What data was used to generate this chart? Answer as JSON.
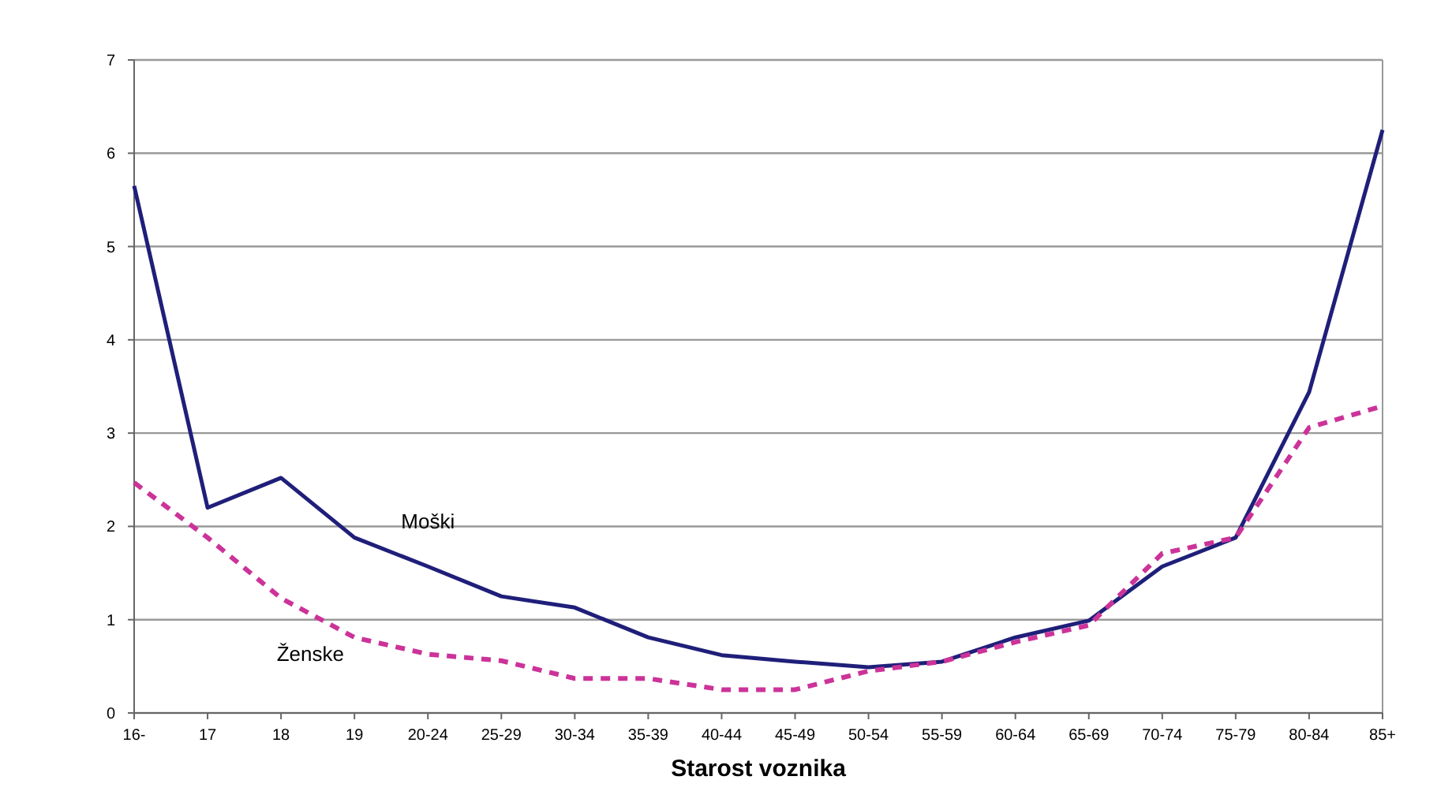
{
  "chart_data": {
    "type": "line",
    "xlabel": "Starost voznika",
    "categories": [
      "16-",
      "17",
      "18",
      "19",
      "20-24",
      "25-29",
      "30-34",
      "35-39",
      "40-44",
      "45-49",
      "50-54",
      "55-59",
      "60-64",
      "65-69",
      "70-74",
      "75-79",
      "80-84",
      "85+"
    ],
    "series": [
      {
        "name": "Moški",
        "color": "#1f1f7a",
        "line_style": "solid",
        "values": [
          5.65,
          2.2,
          2.52,
          1.88,
          1.57,
          1.25,
          1.13,
          0.81,
          0.62,
          0.55,
          0.49,
          0.55,
          0.81,
          0.99,
          1.57,
          1.88,
          3.44,
          6.25
        ]
      },
      {
        "name": "Ženske",
        "color": "#cc3399",
        "line_style": "dashed",
        "values": [
          2.47,
          1.88,
          1.23,
          0.81,
          0.63,
          0.56,
          0.37,
          0.37,
          0.25,
          0.25,
          0.45,
          0.55,
          0.76,
          0.94,
          1.71,
          1.88,
          3.06,
          3.29
        ]
      }
    ],
    "ylim": [
      0,
      7
    ],
    "yticks": [
      0,
      1,
      2,
      3,
      4,
      5,
      6,
      7
    ],
    "grid": "y",
    "legend": false,
    "marker": "none"
  }
}
